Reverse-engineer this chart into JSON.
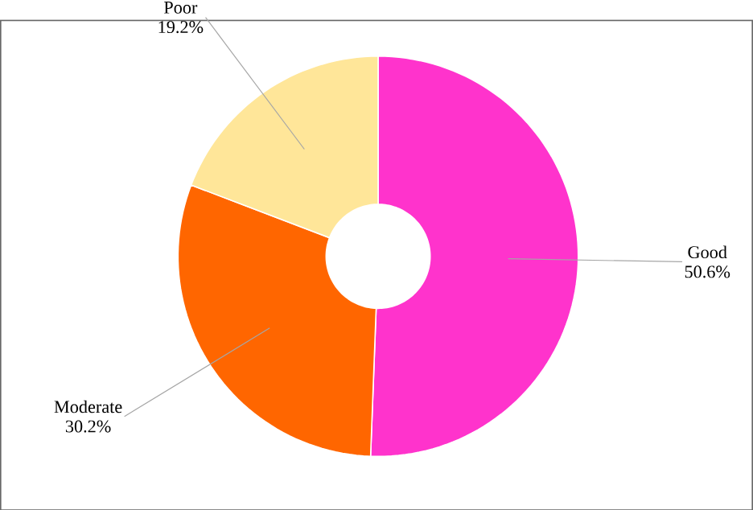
{
  "chart_data": {
    "type": "donut",
    "categories": [
      "Good",
      "Moderate",
      "Poor"
    ],
    "values": [
      50.6,
      30.2,
      19.2
    ],
    "value_labels": [
      "50.6%",
      "30.2%",
      "19.2%"
    ],
    "colors": [
      "#ff33cc",
      "#ff6600",
      "#ffe699"
    ]
  }
}
